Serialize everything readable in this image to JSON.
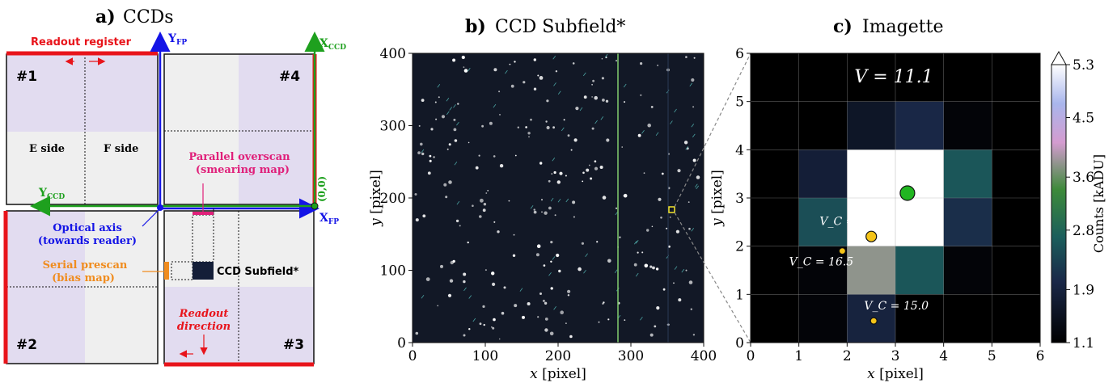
{
  "panel_a": {
    "label": "a)",
    "title": "CCDs",
    "readout_register": "Readout register",
    "ccd_numbers": [
      "#1",
      "#2",
      "#3",
      "#4"
    ],
    "e_side": "E side",
    "f_side": "F side",
    "yfp_main": "Y",
    "yfp_sub": "FP",
    "xfp_main": "X",
    "xfp_sub": "FP",
    "xccd_main": "X",
    "xccd_sub": "CCD",
    "yccd_main": "Y",
    "yccd_sub": "CCD",
    "origin": "(0,0)",
    "optical_axis_1": "Optical axis",
    "optical_axis_2": "(towards reader)",
    "parallel_overscan_1": "Parallel overscan",
    "parallel_overscan_2": "(smearing map)",
    "serial_prescan_1": "Serial prescan",
    "serial_prescan_2": "(bias map)",
    "ccd_subfield": "CCD Subfield*",
    "readout_direction_1": "Readout",
    "readout_direction_2": "direction",
    "colors": {
      "red": "#e8141b",
      "blue": "#1414e6",
      "green": "#1ea01e",
      "magenta": "#e0207a",
      "orange": "#f08c1e",
      "lavender": "#e2dcf0",
      "grey": "#efefef"
    }
  },
  "panel_b": {
    "label": "b)",
    "title": "CCD Subfield*",
    "xlabel_var": "x",
    "xlabel_unit": "[pixel]",
    "ylabel_var": "y",
    "ylabel_unit": "[pixel]",
    "xticks": [
      "0",
      "100",
      "200",
      "300",
      "400"
    ],
    "yticks": [
      "0",
      "100",
      "200",
      "300",
      "400"
    ]
  },
  "panel_c": {
    "label": "c)",
    "title": "Imagette",
    "magnitude": "V = 11.1",
    "xlabel_var": "x",
    "xlabel_unit": "[pixel]",
    "ylabel_var": "y",
    "ylabel_unit": "[pixel]",
    "xticks": [
      "0",
      "1",
      "2",
      "3",
      "4",
      "5",
      "6"
    ],
    "yticks": [
      "0",
      "1",
      "2",
      "3",
      "4",
      "5",
      "6"
    ],
    "colorbar_label": "Counts [kADU]",
    "colorbar_ticks": [
      "1.1",
      "1.9",
      "2.8",
      "3.6",
      "4.5",
      "5.3"
    ],
    "star_labels": [
      "V_C = 12.9",
      "V_C = 16.5",
      "V_C = 15.0"
    ]
  },
  "chart_data": {
    "type": "heatmap",
    "title": "Imagette",
    "xlabel": "x [pixel]",
    "ylabel": "y [pixel]",
    "xlim": [
      0,
      6
    ],
    "ylim": [
      0,
      6
    ],
    "colorbar": {
      "label": "Counts [kADU]",
      "min": 1.1,
      "max": 5.3,
      "ticks": [
        1.1,
        1.9,
        2.8,
        3.6,
        4.5,
        5.3
      ]
    },
    "rows_top_to_bottom": [
      [
        1.1,
        1.1,
        1.1,
        1.1,
        1.1,
        1.1
      ],
      [
        1.1,
        1.1,
        1.6,
        2.0,
        1.2,
        1.1
      ],
      [
        1.1,
        1.8,
        5.3,
        5.3,
        2.6,
        1.1
      ],
      [
        1.1,
        2.5,
        5.3,
        5.3,
        2.1,
        1.1
      ],
      [
        1.1,
        1.2,
        3.8,
        2.6,
        1.2,
        1.1
      ],
      [
        1.1,
        1.2,
        1.9,
        1.1,
        1.1,
        1.1
      ]
    ],
    "stars": [
      {
        "x": 3.25,
        "y": 3.1,
        "label": "",
        "color": "#21b621"
      },
      {
        "x": 2.5,
        "y": 2.2,
        "label": "V_C = 12.9",
        "color": "#f5c418"
      },
      {
        "x": 1.9,
        "y": 1.9,
        "label": "V_C = 16.5",
        "color": "#f5c418"
      },
      {
        "x": 2.55,
        "y": 0.45,
        "label": "V_C = 15.0",
        "color": "#f5c418"
      }
    ]
  }
}
